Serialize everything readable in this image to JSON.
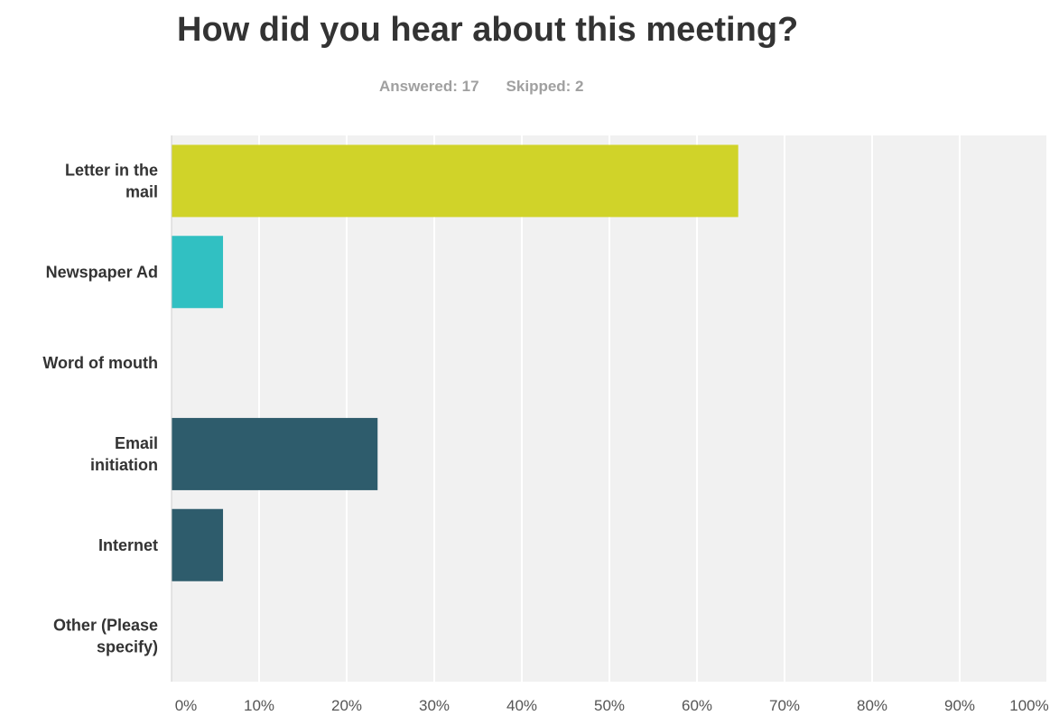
{
  "chart_data": {
    "type": "bar",
    "orientation": "horizontal",
    "title": "How did you hear about this meeting?",
    "answered_label": "Answered: 17",
    "skipped_label": "Skipped: 2",
    "categories": [
      [
        "Letter in the",
        "mail"
      ],
      [
        "Newspaper Ad"
      ],
      [
        "Word of mouth"
      ],
      [
        "Email",
        "initiation"
      ],
      [
        "Internet"
      ],
      [
        "Other (Please",
        "specify)"
      ]
    ],
    "values": [
      64.71,
      5.88,
      0,
      23.53,
      5.88,
      0
    ],
    "colors": [
      "#d0d329",
      "#31c0c2",
      "#888a78",
      "#2e5c6c",
      "#2e5c6c",
      "#2e5c6c"
    ],
    "xlim": [
      0,
      100
    ],
    "xticks": [
      "0%",
      "10%",
      "20%",
      "30%",
      "40%",
      "50%",
      "60%",
      "70%",
      "80%",
      "90%",
      "100%"
    ],
    "grid": true,
    "plot_background": "#f1f1f1"
  }
}
